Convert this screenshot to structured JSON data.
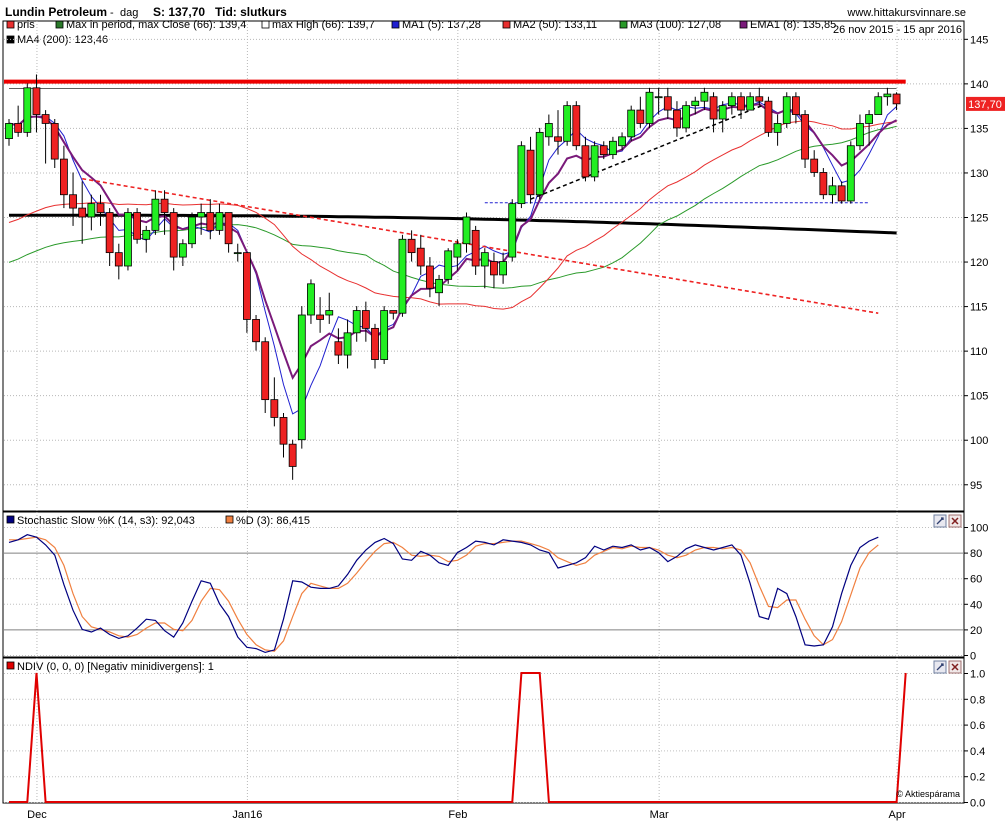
{
  "header": {
    "stock": "Lundin Petroleum",
    "separator": "-",
    "period": "dag",
    "price_label": "S: 137,70",
    "time_label": "Tid: slutkurs",
    "site": "www.hittakursvinnare.se",
    "date_range": "26 nov 2015 - 15 apr 2016"
  },
  "legend": [
    {
      "name": "pris",
      "color": "#e83030"
    },
    {
      "name": "Max in period, max Close (66): 139,4",
      "color": "#2a7a2a"
    },
    {
      "name": "max High (66): 139,7",
      "color": "#ffffff"
    },
    {
      "name": "MA1 (5): 137,28",
      "color": "#2020d0"
    },
    {
      "name": "MA2 (50): 133,11",
      "color": "#e83030"
    },
    {
      "name": "MA3 (100): 127,08",
      "color": "#2a9a2a"
    },
    {
      "name": "EMA1 (8): 135,85",
      "color": "#7a1a7a"
    },
    {
      "name": "MA4 (200): 123,46",
      "color": "#000000"
    }
  ],
  "price_badge": "137,70",
  "stoch_panel": {
    "legend": [
      {
        "name": "Stochastic Slow %K (14, s3): 92,043",
        "color": "#000080"
      },
      {
        "name": "%D (3): 86,415",
        "color": "#f08040"
      }
    ],
    "ticks": [
      "0",
      "20",
      "40",
      "60",
      "80",
      "100"
    ],
    "highlight_level": "80"
  },
  "ndiv_panel": {
    "legend": [
      {
        "name": "NDIV (0, 0, 0) [Negativ minidivergens]: 1",
        "color": "#e00000"
      }
    ],
    "ticks": [
      "0.0",
      "0.2",
      "0.4",
      "0.6",
      "0.8",
      "1.0"
    ],
    "watermark": "© Aktiespárama"
  },
  "colors": {
    "up": "#22ee22",
    "down": "#ee2222",
    "resistance": "#ee0000",
    "ma4": "#000000"
  },
  "chart_data": [
    {
      "type": "candlestick",
      "ylim": [
        92,
        147
      ],
      "yticks": [
        95,
        100,
        105,
        110,
        115,
        120,
        125,
        130,
        135,
        140,
        145
      ],
      "xlabels": [
        {
          "label": "Dec",
          "index": 3
        },
        {
          "label": "Jan16",
          "index": 26
        },
        {
          "label": "Feb",
          "index": 49
        },
        {
          "label": "Mar",
          "index": 71
        },
        {
          "label": "Apr",
          "index": 97
        }
      ],
      "candles": [
        [
          133.8,
          136,
          133,
          135.5
        ],
        [
          135.5,
          137.5,
          134,
          134.5
        ],
        [
          134.5,
          140,
          134,
          139.5
        ],
        [
          139.5,
          141,
          134.5,
          136.5
        ],
        [
          136.5,
          137,
          131,
          135.5
        ],
        [
          135.5,
          136,
          130.5,
          131.5
        ],
        [
          131.5,
          133,
          126,
          127.5
        ],
        [
          127.5,
          130,
          124,
          126
        ],
        [
          126,
          129,
          122,
          125
        ],
        [
          125,
          127.5,
          123.5,
          126.5
        ],
        [
          126.5,
          127.5,
          124,
          125.5
        ],
        [
          125.5,
          126,
          119.5,
          121
        ],
        [
          121,
          122,
          118,
          119.5
        ],
        [
          119.5,
          126,
          119,
          125.5
        ],
        [
          125.5,
          126,
          122,
          122.5
        ],
        [
          122.5,
          124,
          121,
          123.5
        ],
        [
          123.5,
          128,
          123,
          127
        ],
        [
          127,
          128,
          123,
          125.5
        ],
        [
          125.5,
          126,
          119,
          120.5
        ],
        [
          120.5,
          122.5,
          119.5,
          122
        ],
        [
          122,
          125.5,
          121.5,
          125
        ],
        [
          125,
          126.5,
          123,
          125.5
        ],
        [
          125.5,
          127,
          122.5,
          123.5
        ],
        [
          123.5,
          126.5,
          123,
          125.5
        ],
        [
          125.5,
          125.5,
          121,
          122
        ],
        [
          121,
          122,
          120,
          121
        ],
        [
          121,
          121,
          112,
          113.5
        ],
        [
          113.5,
          114,
          110,
          111
        ],
        [
          111,
          111.5,
          103,
          104.5
        ],
        [
          104.5,
          107,
          101.5,
          102.5
        ],
        [
          102.5,
          103,
          98,
          99.5
        ],
        [
          99.5,
          100,
          95.5,
          97
        ],
        [
          100,
          115,
          99,
          114
        ],
        [
          114,
          118,
          113,
          117.5
        ],
        [
          114,
          116,
          112,
          113.5
        ],
        [
          114,
          116.5,
          113,
          114.5
        ],
        [
          111,
          112.5,
          108.5,
          109.5
        ],
        [
          109.5,
          113.5,
          108,
          112
        ],
        [
          112,
          115,
          111,
          114.5
        ],
        [
          114.5,
          115.5,
          111,
          112.5
        ],
        [
          112.5,
          113,
          108,
          109
        ],
        [
          109,
          115,
          108.5,
          114.5
        ],
        [
          114.5,
          114.5,
          113.5,
          114.2
        ],
        [
          114.2,
          123,
          113.8,
          122.5
        ],
        [
          122.5,
          123.5,
          120,
          121
        ],
        [
          121.5,
          123,
          118.5,
          119.5
        ],
        [
          119.5,
          120.5,
          116,
          117
        ],
        [
          116.5,
          118.5,
          115,
          118
        ],
        [
          118,
          121.5,
          117.5,
          121.2
        ],
        [
          120.5,
          122.5,
          119,
          122
        ],
        [
          122,
          125.5,
          121,
          125
        ],
        [
          123.5,
          124,
          118.5,
          119.5
        ],
        [
          119.5,
          121.5,
          117,
          121
        ],
        [
          120,
          121,
          117,
          118.5
        ],
        [
          118.5,
          121,
          117.5,
          120
        ],
        [
          120.5,
          127,
          120,
          126.5
        ],
        [
          126.5,
          133.5,
          126,
          133
        ],
        [
          132.5,
          134,
          126.5,
          127.5
        ],
        [
          127.5,
          135,
          127,
          134.5
        ],
        [
          134,
          136.5,
          133,
          135.5
        ],
        [
          134,
          137,
          132,
          133.5
        ],
        [
          133.5,
          138,
          133,
          137.5
        ],
        [
          137.5,
          138,
          132.5,
          133
        ],
        [
          133,
          134,
          129,
          129.5
        ],
        [
          129.5,
          133.5,
          129,
          133
        ],
        [
          133,
          133.5,
          131.5,
          132
        ],
        [
          132,
          134,
          131.5,
          133.5
        ],
        [
          133,
          134.5,
          132.5,
          134
        ],
        [
          134,
          137.5,
          133.5,
          137
        ],
        [
          137,
          138.5,
          135,
          135.5
        ],
        [
          135.5,
          139.5,
          135,
          139
        ],
        [
          138.5,
          139.5,
          136.5,
          138.5
        ],
        [
          138.5,
          139.5,
          136,
          137
        ],
        [
          137,
          138,
          134,
          135
        ],
        [
          135,
          138,
          134.5,
          137.5
        ],
        [
          137.5,
          138.5,
          136.5,
          138
        ],
        [
          138,
          139.5,
          137,
          139
        ],
        [
          138.5,
          139,
          134.5,
          136
        ],
        [
          136,
          138,
          134.5,
          137.5
        ],
        [
          137.5,
          139,
          136.5,
          138.5
        ],
        [
          138.5,
          139,
          136,
          137
        ],
        [
          137,
          139,
          137,
          138.5
        ],
        [
          138.5,
          139.5,
          137.5,
          138
        ],
        [
          138,
          138.5,
          134,
          134.5
        ],
        [
          134.5,
          136.5,
          133,
          135.5
        ],
        [
          135.5,
          139,
          135,
          138.5
        ],
        [
          138.5,
          139,
          135.5,
          136.5
        ],
        [
          136.5,
          137,
          130.5,
          131.5
        ],
        [
          131.5,
          132.5,
          129.5,
          130
        ],
        [
          130,
          130.5,
          127,
          127.5
        ],
        [
          127.5,
          129.5,
          126.5,
          128.5
        ],
        [
          128.5,
          129,
          126.5,
          126.8
        ],
        [
          126.8,
          133.5,
          126.5,
          133
        ],
        [
          133,
          136.5,
          132.5,
          135.5
        ],
        [
          135.5,
          137,
          133,
          136.5
        ],
        [
          136.5,
          139,
          136.5,
          138.5
        ],
        [
          138.5,
          139.5,
          137.5,
          138.8
        ],
        [
          138.8,
          139,
          137,
          137.7
        ]
      ]
    },
    {
      "type": "line",
      "ylim": [
        0,
        100
      ],
      "series": [
        {
          "name": "Stochastic Slow %K (14, s3): 92,043",
          "values": [
            88,
            90,
            94,
            92,
            86,
            78,
            55,
            35,
            20,
            18,
            21,
            16,
            13,
            15,
            21,
            28,
            27,
            19,
            14,
            25,
            42,
            58,
            56,
            40,
            30,
            14,
            6,
            5,
            2,
            4,
            28,
            58,
            57,
            53,
            52,
            52,
            54,
            63,
            74,
            82,
            88,
            91,
            87,
            75,
            74,
            81,
            78,
            72,
            70,
            80,
            84,
            89,
            88,
            86,
            90,
            89,
            88,
            86,
            82,
            80,
            68,
            70,
            72,
            76,
            85,
            82,
            85,
            84,
            86,
            82,
            84,
            80,
            73,
            77,
            83,
            86,
            84,
            82,
            84,
            86,
            78,
            56,
            30,
            28,
            52,
            48,
            30,
            8,
            7,
            8,
            22,
            48,
            70,
            84,
            89,
            92
          ]
        },
        {
          "name": "%D (3): 86,415",
          "values": [
            90,
            90,
            91,
            92,
            90,
            84,
            70,
            48,
            30,
            22,
            20,
            18,
            15,
            14,
            16,
            21,
            25,
            25,
            20,
            19,
            27,
            42,
            52,
            51,
            42,
            28,
            16,
            8,
            4,
            3,
            11,
            30,
            48,
            56,
            54,
            52,
            52,
            56,
            64,
            73,
            81,
            87,
            88,
            84,
            78,
            77,
            78,
            77,
            73,
            74,
            78,
            85,
            87,
            87,
            88,
            89,
            89,
            87,
            85,
            82,
            76,
            73,
            70,
            72,
            78,
            81,
            84,
            83,
            85,
            84,
            84,
            82,
            78,
            76,
            78,
            82,
            84,
            84,
            83,
            84,
            82,
            72,
            54,
            38,
            37,
            43,
            43,
            28,
            15,
            8,
            12,
            26,
            47,
            68,
            80,
            86
          ]
        }
      ],
      "yticks": [
        0,
        20,
        40,
        60,
        80,
        100
      ]
    },
    {
      "type": "line",
      "ylim": [
        0,
        1
      ],
      "series": [
        {
          "name": "NDIV (0, 0, 0) [Negativ minidivergens]: 1",
          "values": [
            0,
            0,
            0,
            1,
            0,
            0,
            0,
            0,
            0,
            0,
            0,
            0,
            0,
            0,
            0,
            0,
            0,
            0,
            0,
            0,
            0,
            0,
            0,
            0,
            0,
            0,
            0,
            0,
            0,
            0,
            0,
            0,
            0,
            0,
            0,
            0,
            0,
            0,
            0,
            0,
            0,
            0,
            0,
            0,
            0,
            0,
            0,
            0,
            0,
            0,
            0,
            0,
            0,
            0,
            0,
            0,
            1,
            1,
            1,
            0,
            0,
            0,
            0,
            0,
            0,
            0,
            0,
            0,
            0,
            0,
            0,
            0,
            0,
            0,
            0,
            0,
            0,
            0,
            0,
            0,
            0,
            0,
            0,
            0,
            0,
            0,
            0,
            0,
            0,
            0,
            0,
            0,
            0,
            0,
            0,
            0,
            0,
            0,
            1
          ]
        }
      ],
      "yticks": [
        0,
        0.2,
        0.4,
        0.6,
        0.8,
        1.0
      ]
    }
  ]
}
